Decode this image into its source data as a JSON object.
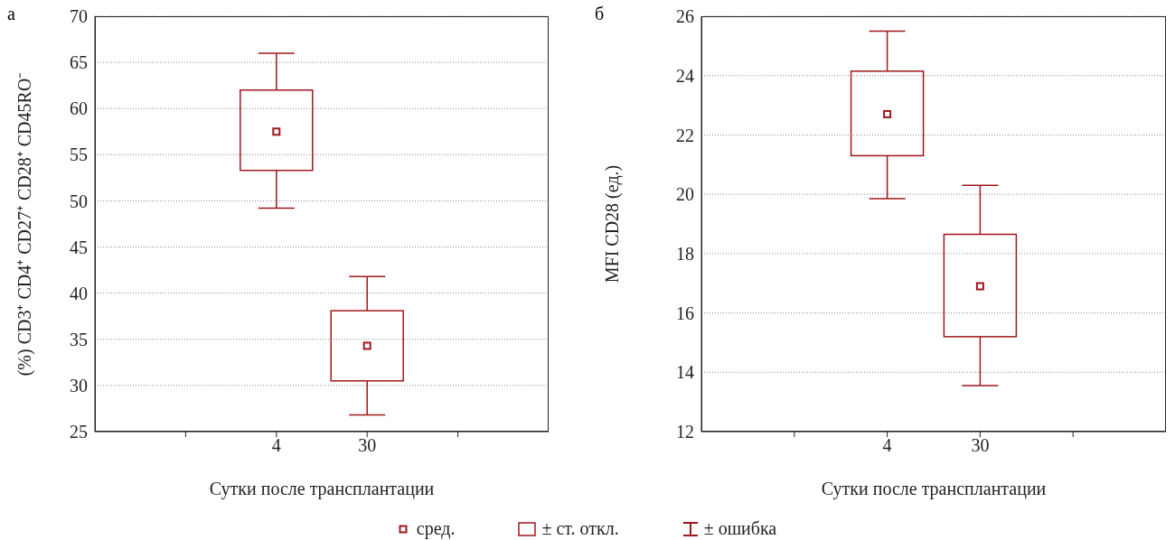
{
  "chart_data": [
    {
      "type": "box",
      "title": "а",
      "xlabel": "Сутки после трансплантации",
      "ylabel": "(%) CD3⁺ CD4⁺ CD27⁺ CD28⁺ CD45RO⁻",
      "categories": [
        "4",
        "30"
      ],
      "color": "#a0171e",
      "marker": "square",
      "boxes": [
        {
          "low": 49.2,
          "q1": 53.3,
          "q3": 62.0,
          "high": 66.0,
          "mean": 57.5
        },
        {
          "low": 26.8,
          "q1": 30.5,
          "q3": 38.1,
          "high": 41.8,
          "mean": 34.3
        }
      ],
      "ylim": [
        25,
        70
      ],
      "yticks": [
        25,
        30,
        35,
        40,
        45,
        50,
        55,
        60,
        65,
        70
      ],
      "grid": "y",
      "annotations": [
        "сред.",
        "± ст. откл.",
        "± ошибка"
      ]
    },
    {
      "type": "box",
      "title": "б",
      "xlabel": "Сутки после трансплантации",
      "ylabel": "MFI CD28 (ед.)",
      "categories": [
        "4",
        "30"
      ],
      "color": "#a0171e",
      "marker": "square",
      "boxes": [
        {
          "low": 19.85,
          "q1": 21.3,
          "q3": 24.15,
          "high": 25.5,
          "mean": 22.7
        },
        {
          "low": 13.55,
          "q1": 15.2,
          "q3": 18.65,
          "high": 20.3,
          "mean": 16.9
        }
      ],
      "ylim": [
        12,
        26
      ],
      "yticks": [
        12,
        14,
        16,
        18,
        20,
        22,
        24,
        26
      ],
      "grid": "y"
    }
  ]
}
